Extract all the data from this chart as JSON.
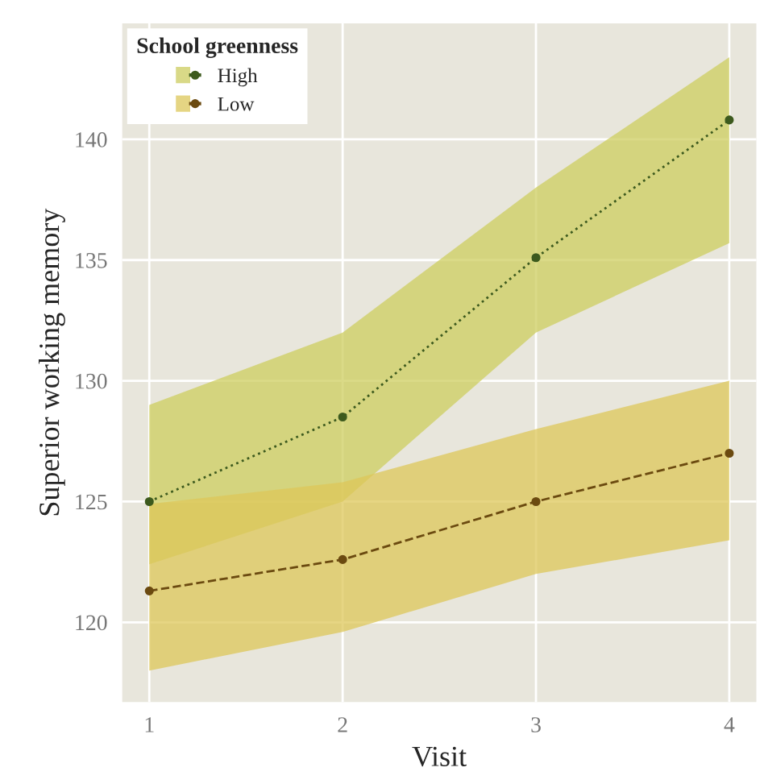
{
  "chart_data": {
    "type": "line",
    "xlabel": "Visit",
    "ylabel": "Superior working memory",
    "legend_title": "School greenness",
    "x": [
      1,
      2,
      3,
      4
    ],
    "xlim": [
      0.86,
      4.14
    ],
    "xticks": [
      1,
      2,
      3,
      4
    ],
    "ylim": [
      116.7,
      144.8
    ],
    "yticks": [
      120,
      125,
      130,
      135,
      140
    ],
    "grid": true,
    "legend": "top left",
    "marker": "circle",
    "series": [
      {
        "name": "High",
        "color": "#3d5a1e",
        "line_style": "dotted",
        "values": [
          125,
          128.5,
          135.1,
          140.8
        ],
        "lower": [
          122.4,
          125,
          132,
          135.7
        ],
        "upper": [
          129,
          132,
          138,
          143.4
        ]
      },
      {
        "name": "Low",
        "color": "#6b4a10",
        "line_style": "dashed",
        "values": [
          121.3,
          122.6,
          125,
          127
        ],
        "lower": [
          118,
          119.6,
          122,
          123.4
        ],
        "upper": [
          124.9,
          125.8,
          128,
          130
        ]
      }
    ]
  }
}
